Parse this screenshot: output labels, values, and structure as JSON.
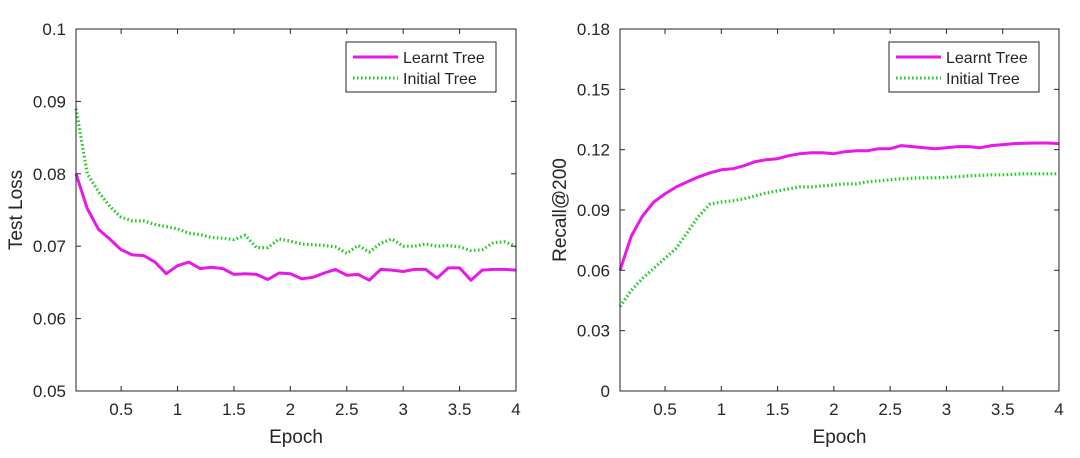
{
  "colors": {
    "learnt": "#e619e6",
    "initial": "#22cc22",
    "axis": "#262626",
    "background": "#ffffff"
  },
  "chart_data": [
    {
      "type": "line",
      "xlabel": "Epoch",
      "ylabel": "Test Loss",
      "xlim": [
        0.1,
        4
      ],
      "ylim": [
        0.05,
        0.1
      ],
      "xticks": [
        0.5,
        1,
        1.5,
        2,
        2.5,
        3,
        3.5,
        4
      ],
      "xtick_labels": [
        "0.5",
        "1",
        "1.5",
        "2",
        "2.5",
        "3",
        "3.5",
        "4"
      ],
      "yticks": [
        0.05,
        0.06,
        0.07,
        0.08,
        0.09,
        0.1
      ],
      "ytick_labels": [
        "0.05",
        "0.06",
        "0.07",
        "0.08",
        "0.09",
        "0.1"
      ],
      "legend_location": "top-right",
      "series": [
        {
          "name": "Learnt Tree",
          "style": "solid",
          "x": [
            0.1,
            0.2,
            0.3,
            0.4,
            0.5,
            0.6,
            0.7,
            0.8,
            0.9,
            1.0,
            1.1,
            1.2,
            1.3,
            1.4,
            1.5,
            1.6,
            1.7,
            1.8,
            1.9,
            2.0,
            2.1,
            2.2,
            2.3,
            2.4,
            2.5,
            2.6,
            2.7,
            2.8,
            2.9,
            3.0,
            3.1,
            3.2,
            3.3,
            3.4,
            3.5,
            3.6,
            3.7,
            3.8,
            3.9,
            4.0
          ],
          "y": [
            0.08,
            0.0752,
            0.0723,
            0.071,
            0.0695,
            0.0688,
            0.0687,
            0.0678,
            0.0662,
            0.0673,
            0.0678,
            0.0669,
            0.0671,
            0.0669,
            0.0661,
            0.0662,
            0.0661,
            0.0654,
            0.0663,
            0.0662,
            0.0655,
            0.0657,
            0.0663,
            0.0668,
            0.066,
            0.0661,
            0.0653,
            0.0668,
            0.0667,
            0.0665,
            0.0668,
            0.0668,
            0.0656,
            0.067,
            0.067,
            0.0653,
            0.0667,
            0.0668,
            0.0668,
            0.0667
          ]
        },
        {
          "name": "Initial Tree",
          "style": "dotted",
          "x": [
            0.1,
            0.2,
            0.3,
            0.4,
            0.5,
            0.6,
            0.7,
            0.8,
            0.9,
            1.0,
            1.1,
            1.2,
            1.3,
            1.4,
            1.5,
            1.6,
            1.7,
            1.8,
            1.9,
            2.0,
            2.1,
            2.2,
            2.3,
            2.4,
            2.5,
            2.6,
            2.7,
            2.8,
            2.9,
            3.0,
            3.1,
            3.2,
            3.3,
            3.4,
            3.5,
            3.6,
            3.7,
            3.8,
            3.9,
            4.0
          ],
          "y": [
            0.089,
            0.08,
            0.0775,
            0.0755,
            0.074,
            0.0735,
            0.0735,
            0.073,
            0.0727,
            0.0724,
            0.0718,
            0.0716,
            0.0712,
            0.0711,
            0.0709,
            0.0715,
            0.0698,
            0.0698,
            0.071,
            0.0707,
            0.0703,
            0.0702,
            0.0701,
            0.0699,
            0.069,
            0.0701,
            0.0692,
            0.0704,
            0.071,
            0.07,
            0.07,
            0.0703,
            0.07,
            0.0701,
            0.0699,
            0.0694,
            0.0695,
            0.0705,
            0.0706,
            0.07
          ]
        }
      ]
    },
    {
      "type": "line",
      "xlabel": "Epoch",
      "ylabel": "Recall@200",
      "xlim": [
        0.1,
        4
      ],
      "ylim": [
        0,
        0.18
      ],
      "xticks": [
        0.5,
        1,
        1.5,
        2,
        2.5,
        3,
        3.5,
        4
      ],
      "xtick_labels": [
        "0.5",
        "1",
        "1.5",
        "2",
        "2.5",
        "3",
        "3.5",
        "4"
      ],
      "yticks": [
        0,
        0.03,
        0.06,
        0.09,
        0.12,
        0.15,
        0.18
      ],
      "ytick_labels": [
        "0",
        "0.03",
        "0.06",
        "0.09",
        "0.12",
        "0.15",
        "0.18"
      ],
      "legend_location": "top-right",
      "series": [
        {
          "name": "Learnt Tree",
          "style": "solid",
          "x": [
            0.1,
            0.2,
            0.3,
            0.4,
            0.5,
            0.6,
            0.7,
            0.8,
            0.9,
            1.0,
            1.1,
            1.2,
            1.3,
            1.4,
            1.5,
            1.6,
            1.7,
            1.8,
            1.9,
            2.0,
            2.1,
            2.2,
            2.3,
            2.4,
            2.5,
            2.6,
            2.7,
            2.8,
            2.9,
            3.0,
            3.1,
            3.2,
            3.3,
            3.4,
            3.5,
            3.6,
            3.7,
            3.8,
            3.9,
            4.0
          ],
          "y": [
            0.06,
            0.077,
            0.087,
            0.094,
            0.098,
            0.1015,
            0.104,
            0.1065,
            0.1085,
            0.11,
            0.1105,
            0.112,
            0.114,
            0.115,
            0.1155,
            0.117,
            0.118,
            0.1185,
            0.1185,
            0.118,
            0.119,
            0.1195,
            0.1195,
            0.1205,
            0.1205,
            0.122,
            0.1215,
            0.121,
            0.1205,
            0.121,
            0.1215,
            0.1215,
            0.121,
            0.122,
            0.1225,
            0.123,
            0.1232,
            0.1233,
            0.1233,
            0.123
          ]
        },
        {
          "name": "Initial Tree",
          "style": "dotted",
          "x": [
            0.1,
            0.2,
            0.3,
            0.4,
            0.5,
            0.6,
            0.7,
            0.8,
            0.9,
            1.0,
            1.1,
            1.2,
            1.3,
            1.4,
            1.5,
            1.6,
            1.7,
            1.8,
            1.9,
            2.0,
            2.1,
            2.2,
            2.3,
            2.4,
            2.5,
            2.6,
            2.7,
            2.8,
            2.9,
            3.0,
            3.1,
            3.2,
            3.3,
            3.4,
            3.5,
            3.6,
            3.7,
            3.8,
            3.9,
            4.0
          ],
          "y": [
            0.042,
            0.05,
            0.056,
            0.061,
            0.066,
            0.071,
            0.079,
            0.087,
            0.093,
            0.094,
            0.0945,
            0.0955,
            0.097,
            0.0985,
            0.0995,
            0.1005,
            0.1015,
            0.1015,
            0.102,
            0.1025,
            0.103,
            0.103,
            0.104,
            0.1045,
            0.105,
            0.1055,
            0.1058,
            0.106,
            0.106,
            0.1062,
            0.1065,
            0.107,
            0.1072,
            0.1075,
            0.1075,
            0.1078,
            0.108,
            0.108,
            0.108,
            0.108
          ]
        }
      ]
    }
  ]
}
